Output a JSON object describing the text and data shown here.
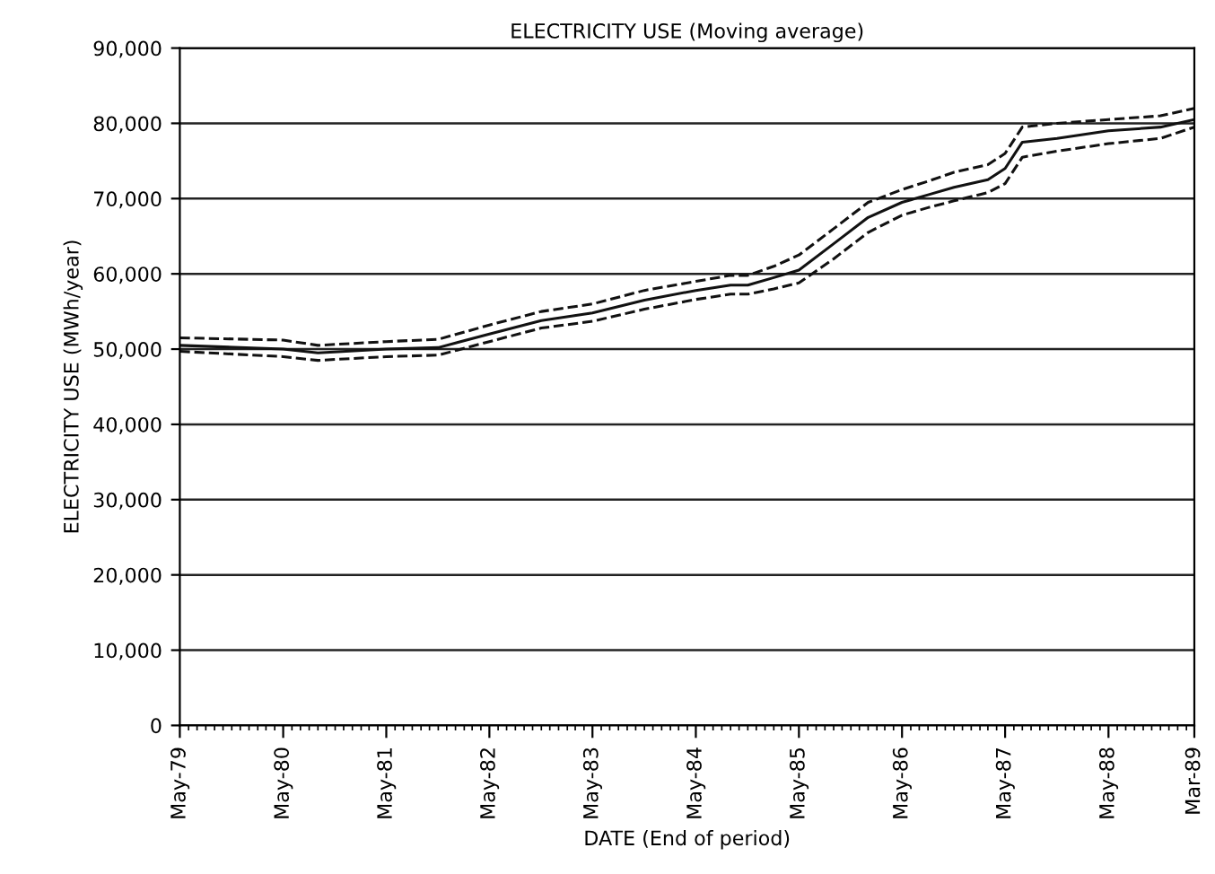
{
  "chart_data": {
    "type": "line",
    "title": "ELECTRICITY USE (Moving average)",
    "xlabel": "DATE (End of period)",
    "ylabel": "ELECTRICITY USE (MWh/year)",
    "x": [
      "1979-05",
      "1980-05",
      "1980-09",
      "1981-05",
      "1981-11",
      "1982-05",
      "1982-11",
      "1983-05",
      "1983-11",
      "1984-05",
      "1984-09",
      "1984-11",
      "1985-02",
      "1985-05",
      "1985-09",
      "1986-01",
      "1986-05",
      "1986-08",
      "1986-11",
      "1987-03",
      "1987-05",
      "1987-07",
      "1987-11",
      "1988-05",
      "1988-11",
      "1989-03"
    ],
    "series": [
      {
        "color": "#111111",
        "line_style": "solid",
        "values": [
          50500,
          50000,
          49500,
          50000,
          50200,
          52000,
          53800,
          54800,
          56500,
          57800,
          58500,
          58500,
          59500,
          60500,
          64000,
          67500,
          69500,
          70500,
          71500,
          72500,
          74000,
          77500,
          78000,
          79000,
          79500,
          80500
        ]
      },
      {
        "color": "#111111",
        "line_style": "dashed",
        "values": [
          51500,
          51200,
          50500,
          51000,
          51300,
          53200,
          55000,
          56000,
          57800,
          59000,
          59800,
          59800,
          61000,
          62500,
          66000,
          69500,
          71200,
          72300,
          73500,
          74500,
          76000,
          79500,
          80000,
          80500,
          81000,
          82000
        ]
      },
      {
        "color": "#111111",
        "line_style": "dashed",
        "values": [
          49700,
          49000,
          48500,
          49000,
          49200,
          51000,
          52800,
          53700,
          55300,
          56600,
          57300,
          57300,
          58000,
          58800,
          62000,
          65500,
          67800,
          68800,
          69700,
          70800,
          72000,
          75500,
          76300,
          77300,
          78000,
          79500
        ]
      }
    ],
    "xlim": [
      "1979-05",
      "1989-03"
    ],
    "xticks": [
      {
        "value": "1979-05",
        "label": "May-79"
      },
      {
        "value": "1980-05",
        "label": "May-80"
      },
      {
        "value": "1981-05",
        "label": "May-81"
      },
      {
        "value": "1982-05",
        "label": "May-82"
      },
      {
        "value": "1983-05",
        "label": "May-83"
      },
      {
        "value": "1984-05",
        "label": "May-84"
      },
      {
        "value": "1985-05",
        "label": "May-85"
      },
      {
        "value": "1986-05",
        "label": "May-86"
      },
      {
        "value": "1987-05",
        "label": "May-87"
      },
      {
        "value": "1988-05",
        "label": "May-88"
      },
      {
        "value": "1989-03",
        "label": "Mar-89"
      }
    ],
    "ylim": [
      0,
      90000
    ],
    "yticks": [
      0,
      {
        "value": 10000,
        "label": "10,000"
      },
      {
        "value": 20000,
        "label": "20,000"
      },
      {
        "value": 30000,
        "label": "30,000"
      },
      {
        "value": 40000,
        "label": "40,000"
      },
      {
        "value": 50000,
        "label": "50,000"
      },
      {
        "value": 60000,
        "label": "60,000"
      },
      {
        "value": 70000,
        "label": "70,000"
      },
      {
        "value": 80000,
        "label": "80,000"
      },
      {
        "value": 90000,
        "label": "90,000"
      }
    ],
    "grid": "y"
  }
}
